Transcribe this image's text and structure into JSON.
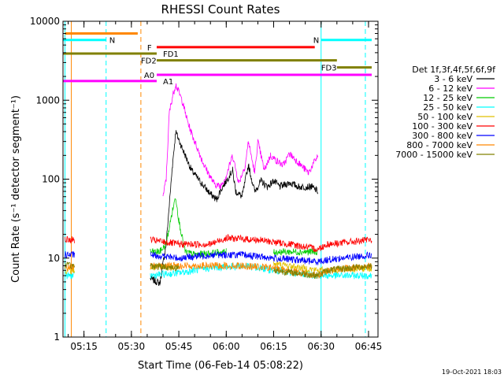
{
  "chart_data": {
    "type": "line",
    "title": "RHESSI Count Rates",
    "xlabel": "Start Time (06-Feb-14 05:08:22)",
    "ylabel": "Count Rate (s⁻¹ detector segment⁻¹)",
    "y_scale": "log",
    "ylim": [
      1,
      10000
    ],
    "x_range_minutes": [
      "05:08:22",
      "06:48:00"
    ],
    "x_ticks": [
      "05:15",
      "05:30",
      "05:45",
      "06:00",
      "06:15",
      "06:30",
      "06:45"
    ],
    "y_ticks": [
      "1",
      "10",
      "100",
      "1000",
      "10000"
    ],
    "legend_title": "Det 1f,3f,4f,5f,6f,9f",
    "legend_placement": "right",
    "series": [
      {
        "name": "3 - 6 keV",
        "color": "#000000",
        "points": [
          [
            "05:36",
            5.5
          ],
          [
            "05:39",
            4.8
          ],
          [
            "05:41",
            15
          ],
          [
            "05:43",
            150
          ],
          [
            "05:44",
            400
          ],
          [
            "05:46",
            250
          ],
          [
            "05:49",
            130
          ],
          [
            "05:52",
            90
          ],
          [
            "05:55",
            65
          ],
          [
            "05:57",
            55
          ],
          [
            "05:58",
            70
          ],
          [
            "06:00",
            95
          ],
          [
            "06:02",
            130
          ],
          [
            "06:03",
            70
          ],
          [
            "06:05",
            60
          ],
          [
            "06:07",
            150
          ],
          [
            "06:09",
            70
          ],
          [
            "06:11",
            95
          ],
          [
            "06:13",
            80
          ],
          [
            "06:15",
            95
          ],
          [
            "06:17",
            80
          ],
          [
            "06:20",
            90
          ],
          [
            "06:23",
            80
          ],
          [
            "06:27",
            80
          ],
          [
            "06:29",
            70
          ]
        ]
      },
      {
        "name": "6 - 12 keV",
        "color": "#ff00ff",
        "points": [
          [
            "05:40",
            60
          ],
          [
            "05:41",
            100
          ],
          [
            "05:42",
            700
          ],
          [
            "05:43",
            1100
          ],
          [
            "05:44",
            1600
          ],
          [
            "05:46",
            1000
          ],
          [
            "05:48",
            500
          ],
          [
            "05:50",
            300
          ],
          [
            "05:53",
            150
          ],
          [
            "05:56",
            90
          ],
          [
            "05:58",
            80
          ],
          [
            "06:00",
            110
          ],
          [
            "06:02",
            200
          ],
          [
            "06:04",
            90
          ],
          [
            "06:06",
            150
          ],
          [
            "06:07",
            300
          ],
          [
            "06:09",
            120
          ],
          [
            "06:10",
            300
          ],
          [
            "06:12",
            130
          ],
          [
            "06:14",
            200
          ],
          [
            "06:16",
            170
          ],
          [
            "06:18",
            150
          ],
          [
            "06:20",
            210
          ],
          [
            "06:23",
            160
          ],
          [
            "06:26",
            120
          ],
          [
            "06:29",
            200
          ]
        ]
      },
      {
        "name": "12 - 25 keV",
        "color": "#00cc00",
        "points": [
          [
            "05:36",
            12
          ],
          [
            "05:39",
            12
          ],
          [
            "05:41",
            15
          ],
          [
            "05:43",
            40
          ],
          [
            "05:44",
            60
          ],
          [
            "05:45",
            30
          ],
          [
            "05:47",
            12
          ],
          [
            "05:50",
            11
          ],
          [
            "06:00",
            12
          ],
          [
            "06:15",
            12
          ],
          [
            "06:29",
            12
          ]
        ]
      },
      {
        "name": "25 - 50 keV",
        "color": "#00ffff",
        "points": [
          [
            "05:09",
            6
          ],
          [
            "05:12",
            6
          ],
          [
            "05:36",
            6
          ],
          [
            "05:45",
            6.5
          ],
          [
            "05:55",
            7.5
          ],
          [
            "06:05",
            8
          ],
          [
            "06:15",
            7
          ],
          [
            "06:29",
            6
          ],
          [
            "06:32",
            6
          ],
          [
            "06:46",
            6
          ]
        ]
      },
      {
        "name": "50 - 100 keV",
        "color": "#e0c000",
        "points": [
          [
            "05:09",
            7
          ],
          [
            "05:12",
            7
          ],
          [
            "05:36",
            7.5
          ],
          [
            "05:45",
            8
          ],
          [
            "06:00",
            9
          ],
          [
            "06:15",
            8.5
          ],
          [
            "06:29",
            7
          ],
          [
            "06:32",
            7
          ],
          [
            "06:46",
            7.5
          ]
        ]
      },
      {
        "name": "100 - 300 keV",
        "color": "#ff0000",
        "points": [
          [
            "05:09",
            17
          ],
          [
            "05:12",
            17
          ],
          [
            "05:36",
            17
          ],
          [
            "05:45",
            15
          ],
          [
            "05:55",
            15
          ],
          [
            "06:00",
            18
          ],
          [
            "06:10",
            17
          ],
          [
            "06:20",
            15
          ],
          [
            "06:29",
            13
          ],
          [
            "06:32",
            15
          ],
          [
            "06:46",
            17
          ]
        ]
      },
      {
        "name": "300 - 800 keV",
        "color": "#0000ff",
        "points": [
          [
            "05:09",
            11
          ],
          [
            "05:12",
            11
          ],
          [
            "05:36",
            11
          ],
          [
            "05:45",
            10
          ],
          [
            "05:55",
            11
          ],
          [
            "06:05",
            11
          ],
          [
            "06:15",
            10
          ],
          [
            "06:29",
            9
          ],
          [
            "06:32",
            9.5
          ],
          [
            "06:46",
            11
          ]
        ]
      },
      {
        "name": "800 - 7000 keV",
        "color": "#ff8800",
        "points": [
          [
            "05:09",
            7.5
          ],
          [
            "05:12",
            7.5
          ],
          [
            "05:36",
            8
          ],
          [
            "05:45",
            8
          ],
          [
            "05:55",
            8
          ],
          [
            "06:05",
            8
          ],
          [
            "06:15",
            7.5
          ],
          [
            "06:29",
            6
          ],
          [
            "06:32",
            7
          ],
          [
            "06:46",
            8
          ]
        ]
      },
      {
        "name": "7000 - 15000 keV",
        "color": "#808000",
        "points": [
          [
            "05:09",
            8
          ],
          [
            "05:12",
            8
          ],
          [
            "05:36",
            8
          ],
          [
            "05:45",
            7.5
          ],
          [
            "06:00",
            8
          ],
          [
            "06:15",
            7
          ],
          [
            "06:29",
            6
          ],
          [
            "06:32",
            7
          ],
          [
            "06:46",
            8
          ]
        ]
      }
    ],
    "flag_bars": [
      {
        "label": "",
        "color": "#ff8800",
        "start": "05:09",
        "end": "05:32",
        "level": 7000
      },
      {
        "label": "N",
        "color": "#00ffff",
        "start": "05:08:22",
        "end": "05:22",
        "level": 5800,
        "label_pos": "05:23"
      },
      {
        "label": "N",
        "color": "#00ffff",
        "start": "06:30",
        "end": "06:46",
        "level": 5800
      },
      {
        "label": "F",
        "color": "#ff0000",
        "start": "05:38",
        "end": "06:28",
        "level": 4700,
        "label_pos": "05:35"
      },
      {
        "label": "FD1",
        "color": "#808000",
        "start": "05:08:22",
        "end": "05:38",
        "level": 3900,
        "label_pos": "05:40"
      },
      {
        "label": "FD2",
        "color": "#808000",
        "start": "05:38",
        "end": "06:35",
        "level": 3200,
        "label_pos": "05:33"
      },
      {
        "label": "FD3",
        "color": "#808000",
        "start": "06:35",
        "end": "06:46",
        "level": 2600,
        "label_pos": "06:30"
      },
      {
        "label": "A0",
        "color": "#ff00ff",
        "start": "05:38",
        "end": "06:46",
        "level": 2100,
        "label_pos": "05:34"
      },
      {
        "label": "A1",
        "color": "#ff00ff",
        "start": "05:08:22",
        "end": "05:38",
        "level": 1750,
        "label_pos": "05:40"
      }
    ],
    "vertical_markers": [
      {
        "time": "05:09",
        "color": "#00ffff",
        "style": "solid"
      },
      {
        "time": "05:11",
        "color": "#ff8800",
        "style": "solid"
      },
      {
        "time": "05:22",
        "color": "#00ffff",
        "style": "dashed"
      },
      {
        "time": "05:33",
        "color": "#ff8800",
        "style": "dashed"
      },
      {
        "time": "06:30",
        "color": "#00ffff",
        "style": "solid"
      },
      {
        "time": "06:44",
        "color": "#00ffff",
        "style": "dashed"
      }
    ]
  },
  "footer_timestamp": "19-Oct-2021 18:03"
}
